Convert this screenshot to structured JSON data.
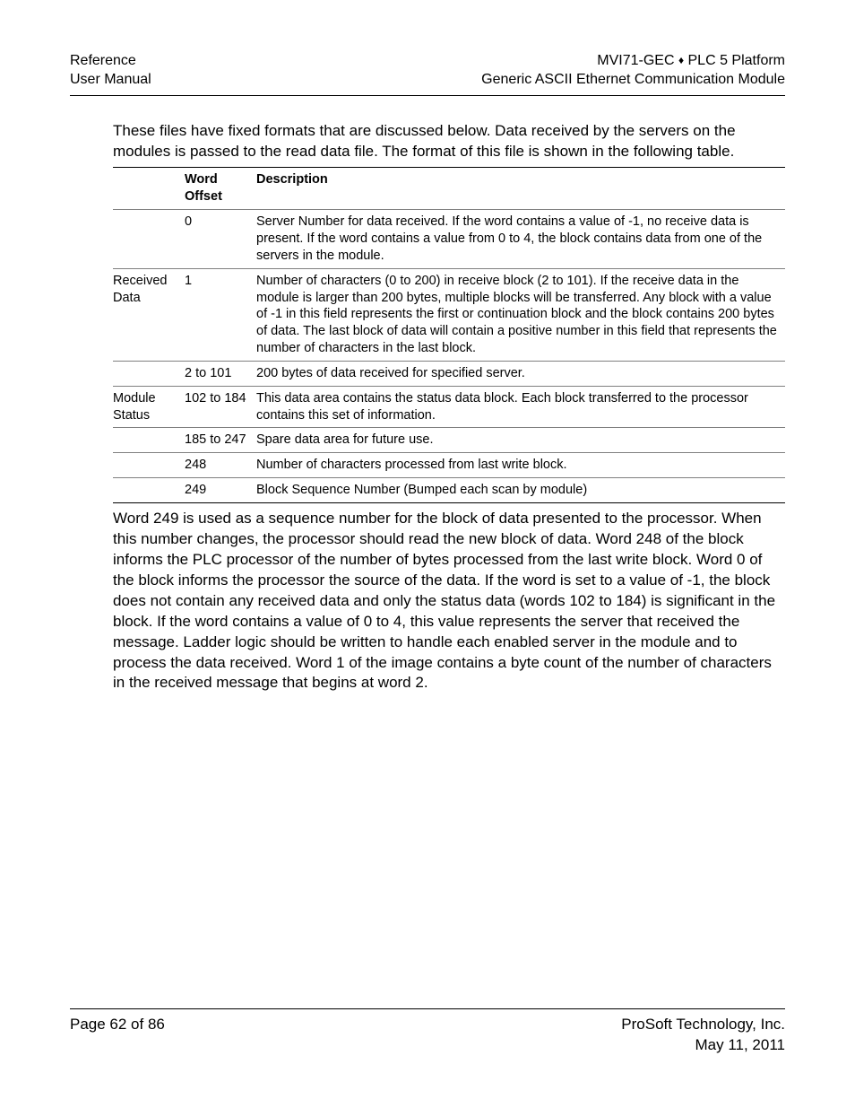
{
  "header": {
    "left_line1": "Reference",
    "left_line2": "User Manual",
    "right_line1_a": "MVI71-GEC ",
    "right_line1_b": " PLC 5 Platform",
    "right_line2": "Generic ASCII Ethernet Communication Module"
  },
  "intro_paragraph": "These files have fixed formats that are discussed below. Data received by the servers on the modules is passed to the read data file. The format of this file is shown in the following table.",
  "table": {
    "headers": {
      "col1": "",
      "col2": "Word Offset",
      "col3": "Description"
    },
    "rows": [
      {
        "label": "",
        "offset": "0",
        "desc": "Server Number for data received. If the word contains a value of -1, no receive data is present. If the word contains a value from 0 to 4, the block contains data from one of the servers in the module.",
        "sep": true
      },
      {
        "label": "Received Data",
        "offset": "1",
        "desc": "Number of characters (0 to 200) in receive block (2 to 101). If the receive data in the module is larger than 200 bytes, multiple blocks will be transferred. Any block with a value of -1 in this field represents the first or continuation block and the block contains 200 bytes of data. The last block of data will contain a positive number in this field that represents the number of characters in the last block.",
        "sep": true
      },
      {
        "label": "",
        "offset": "2 to 101",
        "desc": "200 bytes of data received for specified server.",
        "sep": true
      },
      {
        "label": "Module Status",
        "offset": "102 to 184",
        "desc": "This data area contains the status data block. Each block transferred to the processor contains this set of information.",
        "sep": true
      },
      {
        "label": "",
        "offset": "185 to 247",
        "desc": "Spare data area for future use.",
        "sep": true
      },
      {
        "label": "",
        "offset": "248",
        "desc": "Number of characters processed from last write block.",
        "sep": true
      },
      {
        "label": "",
        "offset": "249",
        "desc": "Block Sequence Number (Bumped each scan by module)",
        "sep": false,
        "last": true
      }
    ]
  },
  "post_paragraph": "Word 249 is used as a sequence number for the block of data presented to the processor. When this number changes, the processor should read the new block of data. Word 248 of the block informs the PLC processor of the number of bytes processed from the last write block. Word 0 of the block informs the processor the source of the data. If the word is set to a value of -1, the block does not contain any received data and only the status data (words 102 to 184) is significant in the block. If the word contains a value of 0 to 4, this value represents the server that received the message. Ladder logic should be written to handle each enabled server in the module and to process the data received. Word 1 of the image contains a byte count of the number of characters in the received message that begins at word 2.",
  "footer": {
    "page_text": "Page 62 of 86",
    "company": "ProSoft Technology, Inc.",
    "date": "May 11, 2011"
  },
  "colors": {
    "text": "#000000",
    "background": "#ffffff",
    "border_strong": "#000000",
    "border_light": "#808080"
  },
  "typography": {
    "body_fontsize_pt": 12,
    "table_fontsize_pt": 11,
    "font_family": "Arial"
  }
}
